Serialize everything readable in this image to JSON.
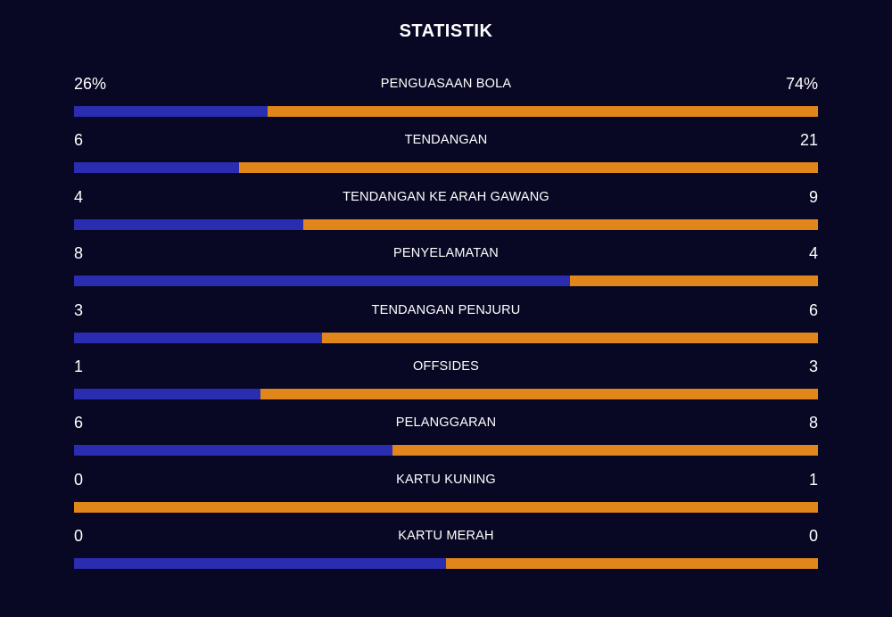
{
  "title": "STATISTIK",
  "colors": {
    "background": "#080824",
    "home": "#2b2db0",
    "away": "#e0861a",
    "text": "#ffffff"
  },
  "stats": [
    {
      "label": "PENGUASAAN BOLA",
      "left": "26%",
      "right": "74%",
      "share": 0.26
    },
    {
      "label": "TENDANGAN",
      "left": "6",
      "right": "21",
      "share": 0.2222
    },
    {
      "label": "TENDANGAN KE ARAH GAWANG",
      "left": "4",
      "right": "9",
      "share": 0.3077
    },
    {
      "label": "PENYELAMATAN",
      "left": "8",
      "right": "4",
      "share": 0.6667
    },
    {
      "label": "TENDANGAN PENJURU",
      "left": "3",
      "right": "6",
      "share": 0.3333
    },
    {
      "label": "OFFSIDES",
      "left": "1",
      "right": "3",
      "share": 0.25
    },
    {
      "label": "PELANGGARAN",
      "left": "6",
      "right": "8",
      "share": 0.4286
    },
    {
      "label": "KARTU KUNING",
      "left": "0",
      "right": "1",
      "share": 0.0
    },
    {
      "label": "KARTU MERAH",
      "left": "0",
      "right": "0",
      "share": 0.5
    }
  ]
}
